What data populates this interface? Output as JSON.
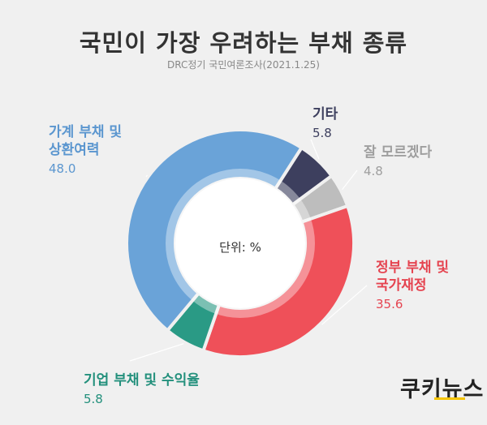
{
  "title": "국민이 가장 우려하는 부채 종류",
  "subtitle": "DRC정기 국민여론조사(2021.1.25)",
  "unit_label": "단위: %",
  "logo": "쿠키뉴스",
  "colors": {
    "household": "#6aa3d8",
    "other": "#3d3f5e",
    "unknown": "#bdbdbd",
    "government": "#ef5059",
    "corporate": "#2a9a85",
    "background": "#f0f0f0"
  },
  "chart_data": {
    "type": "pie",
    "title": "국민이 가장 우려하는 부채 종류",
    "subtitle": "DRC정기 국민여론조사(2021.1.25)",
    "unit": "단위: %",
    "slices": [
      {
        "label": "기타",
        "value": 5.8
      },
      {
        "label": "잘 모르겠다",
        "value": 4.8
      },
      {
        "label": "정부 부채 및 국가재정",
        "value": 35.6
      },
      {
        "label": "기업 부채 및 수익율",
        "value": 5.8
      },
      {
        "label": "가계 부채 및 상환여력",
        "value": 48.0
      }
    ]
  },
  "labels": {
    "household": {
      "line1": "가계 부채 및",
      "line2": "상환여력",
      "value": "48.0"
    },
    "other": {
      "line1": "기타",
      "value": "5.8"
    },
    "unknown": {
      "line1": "잘 모르겠다",
      "value": "4.8"
    },
    "government": {
      "line1": "정부 부채 및",
      "line2": "국가재정",
      "value": "35.6"
    },
    "corporate": {
      "line1": "기업 부채 및 수익율",
      "value": "5.8"
    }
  }
}
